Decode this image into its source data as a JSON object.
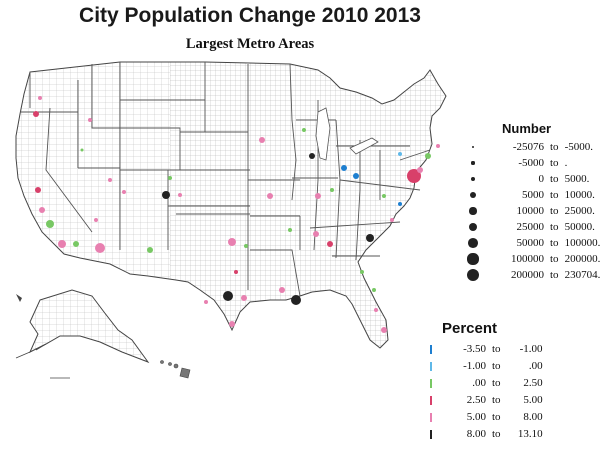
{
  "title": "City Population Change 2010 2013",
  "subtitle": "Largest Metro Areas",
  "number_legend": {
    "heading": "Number",
    "rows": [
      {
        "low": "-25076",
        "to": "to",
        "high": "-5000."
      },
      {
        "low": "-5000",
        "to": "to",
        "high": "."
      },
      {
        "low": "0",
        "to": "to",
        "high": "5000."
      },
      {
        "low": "5000",
        "to": "to",
        "high": "10000."
      },
      {
        "low": "10000",
        "to": "to",
        "high": "25000."
      },
      {
        "low": "25000",
        "to": "to",
        "high": "50000."
      },
      {
        "low": "50000",
        "to": "to",
        "high": "100000."
      },
      {
        "low": "100000",
        "to": "to",
        "high": "200000."
      },
      {
        "low": "200000",
        "to": "to",
        "high": "230704."
      }
    ]
  },
  "percent_legend": {
    "heading": "Percent",
    "rows": [
      {
        "low": "-3.50",
        "to": "to",
        "high": "-1.00",
        "color": "#1e7fd0"
      },
      {
        "low": "-1.00",
        "to": "to",
        "high": ".00",
        "color": "#5fb8e8"
      },
      {
        "low": ".00",
        "to": "to",
        "high": "2.50",
        "color": "#78c864"
      },
      {
        "low": "2.50",
        "to": "to",
        "high": "5.00",
        "color": "#d8406a"
      },
      {
        "low": "5.00",
        "to": "to",
        "high": "8.00",
        "color": "#e880b0"
      },
      {
        "low": "8.00",
        "to": "to",
        "high": "13.10",
        "color": "#222222"
      }
    ]
  },
  "colors": {
    "state_line": "#555555",
    "county_line": "#b8b8b8",
    "neg_strong": "#1e7fd0",
    "neg_weak": "#5fb8e8",
    "low_growth": "#78c864",
    "mid_growth": "#d8406a",
    "high_growth": "#e880b0",
    "top_growth": "#222222"
  }
}
